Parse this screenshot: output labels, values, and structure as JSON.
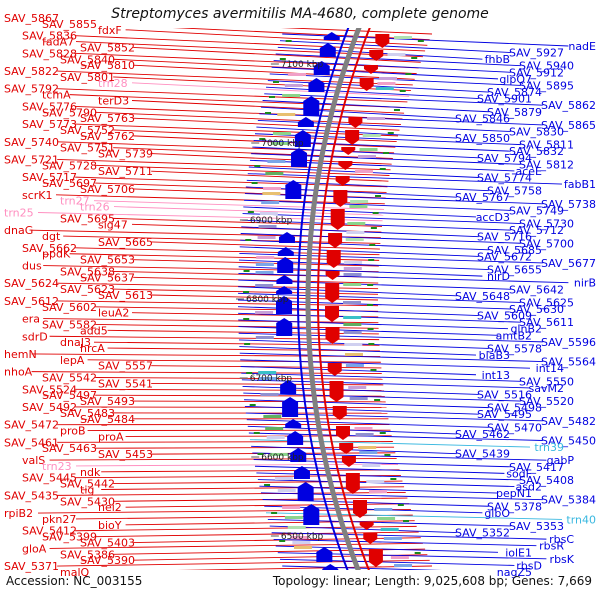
{
  "title": "Streptomyces avermitilis MA-4680, complete genome",
  "footer": {
    "accession": "Accession: NC_003155",
    "topology": "Topology: linear; Length: 9,025,608 bp; Genes: 7,669"
  },
  "ruler": {
    "ticks": [
      "7100 kbp",
      "7000 kbp",
      "6900 kbp",
      "6800 kbp",
      "6700 kbp",
      "6600 kbp",
      "6500 kbp"
    ]
  },
  "colors": {
    "forward_strand": "#e00000",
    "reverse_strand": "#0000e0",
    "trna": "#ff8fc0",
    "trna_reverse": "#3ab8e0",
    "backbone": "#808080"
  },
  "left_labels": [
    {
      "text": "SAV_5867",
      "kind": "gene"
    },
    {
      "text": "SAV_5855",
      "kind": "gene"
    },
    {
      "text": "fdxF",
      "kind": "gene"
    },
    {
      "text": "SAV_5836",
      "kind": "gene"
    },
    {
      "text": "fadA7",
      "kind": "gene"
    },
    {
      "text": "SAV_5852",
      "kind": "gene"
    },
    {
      "text": "SAV_5828",
      "kind": "gene"
    },
    {
      "text": "SAV_5840",
      "kind": "gene"
    },
    {
      "text": "SAV_5810",
      "kind": "gene"
    },
    {
      "text": "SAV_5822",
      "kind": "gene"
    },
    {
      "text": "SAV_5801",
      "kind": "gene"
    },
    {
      "text": "trn28",
      "kind": "trna"
    },
    {
      "text": "SAV_5792",
      "kind": "gene"
    },
    {
      "text": "tcmA",
      "kind": "gene"
    },
    {
      "text": "terD3",
      "kind": "gene"
    },
    {
      "text": "SAV_5776",
      "kind": "gene"
    },
    {
      "text": "SAV_5790",
      "kind": "gene"
    },
    {
      "text": "SAV_5763",
      "kind": "gene"
    },
    {
      "text": "SAV_5773",
      "kind": "gene"
    },
    {
      "text": "SAV_5752",
      "kind": "gene"
    },
    {
      "text": "SAV_5762",
      "kind": "gene"
    },
    {
      "text": "SAV_5740",
      "kind": "gene"
    },
    {
      "text": "SAV_5751",
      "kind": "gene"
    },
    {
      "text": "SAV_5739",
      "kind": "gene"
    },
    {
      "text": "SAV_5721",
      "kind": "gene"
    },
    {
      "text": "SAV_5728",
      "kind": "gene"
    },
    {
      "text": "SAV_5711",
      "kind": "gene"
    },
    {
      "text": "SAV_5717",
      "kind": "gene"
    },
    {
      "text": "SAV_5697",
      "kind": "gene"
    },
    {
      "text": "SAV_5706",
      "kind": "gene"
    },
    {
      "text": "scrK1",
      "kind": "gene"
    },
    {
      "text": "trn27",
      "kind": "trna"
    },
    {
      "text": "trn26",
      "kind": "trna"
    },
    {
      "text": "trn25",
      "kind": "trna"
    },
    {
      "text": "SAV_5695",
      "kind": "gene"
    },
    {
      "text": "sig47",
      "kind": "gene"
    },
    {
      "text": "dnaG",
      "kind": "gene"
    },
    {
      "text": "dgt",
      "kind": "gene"
    },
    {
      "text": "SAV_5665",
      "kind": "gene"
    },
    {
      "text": "SAV_5662",
      "kind": "gene"
    },
    {
      "text": "ppdK",
      "kind": "gene"
    },
    {
      "text": "SAV_5653",
      "kind": "gene"
    },
    {
      "text": "dus",
      "kind": "gene"
    },
    {
      "text": "SAV_5638",
      "kind": "gene"
    },
    {
      "text": "SAV_5637",
      "kind": "gene"
    },
    {
      "text": "SAV_5624",
      "kind": "gene"
    },
    {
      "text": "SAV_5623",
      "kind": "gene"
    },
    {
      "text": "SAV_5613",
      "kind": "gene"
    },
    {
      "text": "SAV_5612",
      "kind": "gene"
    },
    {
      "text": "SAV_5602",
      "kind": "gene"
    },
    {
      "text": "leuA2",
      "kind": "gene"
    },
    {
      "text": "era",
      "kind": "gene"
    },
    {
      "text": "SAV_5582",
      "kind": "gene"
    },
    {
      "text": "add5",
      "kind": "gene"
    },
    {
      "text": "sdrD",
      "kind": "gene"
    },
    {
      "text": "dnaJ3",
      "kind": "gene"
    },
    {
      "text": "hrcA",
      "kind": "gene"
    },
    {
      "text": "hemN",
      "kind": "gene"
    },
    {
      "text": "lepA",
      "kind": "gene"
    },
    {
      "text": "SAV_5557",
      "kind": "gene"
    },
    {
      "text": "nhoA",
      "kind": "gene"
    },
    {
      "text": "SAV_5542",
      "kind": "gene"
    },
    {
      "text": "SAV_5541",
      "kind": "gene"
    },
    {
      "text": "SAV_5524",
      "kind": "gene"
    },
    {
      "text": "SAV_5497",
      "kind": "gene"
    },
    {
      "text": "SAV_5493",
      "kind": "gene"
    },
    {
      "text": "SAV_5492",
      "kind": "gene"
    },
    {
      "text": "SAV_5483",
      "kind": "gene"
    },
    {
      "text": "SAV_5484",
      "kind": "gene"
    },
    {
      "text": "SAV_5472",
      "kind": "gene"
    },
    {
      "text": "proB",
      "kind": "gene"
    },
    {
      "text": "proA",
      "kind": "gene"
    },
    {
      "text": "SAV_5461",
      "kind": "gene"
    },
    {
      "text": "SAV_5463",
      "kind": "gene"
    },
    {
      "text": "SAV_5453",
      "kind": "gene"
    },
    {
      "text": "valS",
      "kind": "gene"
    },
    {
      "text": "trn23",
      "kind": "trna"
    },
    {
      "text": "ndk",
      "kind": "gene"
    },
    {
      "text": "SAV_5445",
      "kind": "gene"
    },
    {
      "text": "SAV_5442",
      "kind": "gene"
    },
    {
      "text": "tig",
      "kind": "gene"
    },
    {
      "text": "SAV_5435",
      "kind": "gene"
    },
    {
      "text": "SAV_5430",
      "kind": "gene"
    },
    {
      "text": "nei2",
      "kind": "gene"
    },
    {
      "text": "rpiB2",
      "kind": "gene"
    },
    {
      "text": "pkn27",
      "kind": "gene"
    },
    {
      "text": "bioY",
      "kind": "gene"
    },
    {
      "text": "SAV_5412",
      "kind": "gene"
    },
    {
      "text": "SAV_5399",
      "kind": "gene"
    },
    {
      "text": "SAV_5403",
      "kind": "gene"
    },
    {
      "text": "gloA",
      "kind": "gene"
    },
    {
      "text": "SAV_5386",
      "kind": "gene"
    },
    {
      "text": "SAV_5390",
      "kind": "gene"
    },
    {
      "text": "SAV_5371",
      "kind": "gene"
    },
    {
      "text": "malQ",
      "kind": "gene"
    }
  ],
  "right_labels": [
    {
      "text": "nadE",
      "kind": "gene"
    },
    {
      "text": "SAV_5927",
      "kind": "gene"
    },
    {
      "text": "fhbB",
      "kind": "gene"
    },
    {
      "text": "SAV_5940",
      "kind": "gene"
    },
    {
      "text": "SAV_5912",
      "kind": "gene"
    },
    {
      "text": "glpQ7",
      "kind": "gene"
    },
    {
      "text": "SAV_5895",
      "kind": "gene"
    },
    {
      "text": "SAV_5874",
      "kind": "gene"
    },
    {
      "text": "SAV_5901",
      "kind": "gene"
    },
    {
      "text": "SAV_5862",
      "kind": "gene"
    },
    {
      "text": "SAV_5879",
      "kind": "gene"
    },
    {
      "text": "SAV_5846",
      "kind": "gene"
    },
    {
      "text": "SAV_5865",
      "kind": "gene"
    },
    {
      "text": "SAV_5830",
      "kind": "gene"
    },
    {
      "text": "SAV_5850",
      "kind": "gene"
    },
    {
      "text": "SAV_5811",
      "kind": "gene"
    },
    {
      "text": "SAV_5832",
      "kind": "gene"
    },
    {
      "text": "SAV_5794",
      "kind": "gene"
    },
    {
      "text": "SAV_5812",
      "kind": "gene"
    },
    {
      "text": "aceE",
      "kind": "gene"
    },
    {
      "text": "SAV_5774",
      "kind": "gene"
    },
    {
      "text": "fabB1",
      "kind": "gene"
    },
    {
      "text": "SAV_5758",
      "kind": "gene"
    },
    {
      "text": "SAV_5767",
      "kind": "gene"
    },
    {
      "text": "SAV_5738",
      "kind": "gene"
    },
    {
      "text": "SAV_5749",
      "kind": "gene"
    },
    {
      "text": "accD3",
      "kind": "gene"
    },
    {
      "text": "SAV_5730",
      "kind": "gene"
    },
    {
      "text": "SAV_5712",
      "kind": "gene"
    },
    {
      "text": "SAV_5716",
      "kind": "gene"
    },
    {
      "text": "SAV_5700",
      "kind": "gene"
    },
    {
      "text": "SAV_5685",
      "kind": "gene"
    },
    {
      "text": "SAV_5672",
      "kind": "gene"
    },
    {
      "text": "SAV_5677",
      "kind": "gene"
    },
    {
      "text": "SAV_5655",
      "kind": "gene"
    },
    {
      "text": "nirD",
      "kind": "gene"
    },
    {
      "text": "nirB",
      "kind": "gene"
    },
    {
      "text": "SAV_5642",
      "kind": "gene"
    },
    {
      "text": "SAV_5648",
      "kind": "gene"
    },
    {
      "text": "SAV_5625",
      "kind": "gene"
    },
    {
      "text": "SAV_5630",
      "kind": "gene"
    },
    {
      "text": "SAV_5609",
      "kind": "gene"
    },
    {
      "text": "SAV_5611",
      "kind": "gene"
    },
    {
      "text": "glnB2",
      "kind": "gene"
    },
    {
      "text": "amtB2",
      "kind": "gene"
    },
    {
      "text": "SAV_5596",
      "kind": "gene"
    },
    {
      "text": "SAV_5578",
      "kind": "gene"
    },
    {
      "text": "blaB3",
      "kind": "gene"
    },
    {
      "text": "SAV_5564",
      "kind": "gene"
    },
    {
      "text": "int14",
      "kind": "gene"
    },
    {
      "text": "int13",
      "kind": "gene"
    },
    {
      "text": "SAV_5550",
      "kind": "gene"
    },
    {
      "text": "savM2",
      "kind": "gene"
    },
    {
      "text": "SAV_5516",
      "kind": "gene"
    },
    {
      "text": "SAV_5520",
      "kind": "gene"
    },
    {
      "text": "SAV_5498",
      "kind": "gene"
    },
    {
      "text": "SAV_5495",
      "kind": "gene"
    },
    {
      "text": "SAV_5482",
      "kind": "gene"
    },
    {
      "text": "SAV_5470",
      "kind": "gene"
    },
    {
      "text": "SAV_5462",
      "kind": "gene"
    },
    {
      "text": "SAV_5450",
      "kind": "gene"
    },
    {
      "text": "trn39",
      "kind": "trna"
    },
    {
      "text": "SAV_5439",
      "kind": "gene"
    },
    {
      "text": "gabP",
      "kind": "gene"
    },
    {
      "text": "SAV_5417",
      "kind": "gene"
    },
    {
      "text": "sodF",
      "kind": "gene"
    },
    {
      "text": "SAV_5408",
      "kind": "gene"
    },
    {
      "text": "asd2",
      "kind": "gene"
    },
    {
      "text": "pepN1",
      "kind": "gene"
    },
    {
      "text": "SAV_5384",
      "kind": "gene"
    },
    {
      "text": "SAV_5378",
      "kind": "gene"
    },
    {
      "text": "glbO",
      "kind": "gene"
    },
    {
      "text": "trn40",
      "kind": "trna"
    },
    {
      "text": "SAV_5353",
      "kind": "gene"
    },
    {
      "text": "SAV_5352",
      "kind": "gene"
    },
    {
      "text": "rbsC",
      "kind": "gene"
    },
    {
      "text": "rbsR",
      "kind": "gene"
    },
    {
      "text": "iolE1",
      "kind": "gene"
    },
    {
      "text": "rbsK",
      "kind": "gene"
    },
    {
      "text": "rbsD",
      "kind": "gene"
    },
    {
      "text": "nagZ5",
      "kind": "gene"
    }
  ]
}
